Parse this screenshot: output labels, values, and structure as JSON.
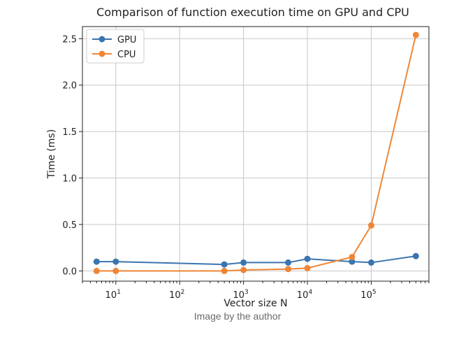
{
  "caption": "Image by the author",
  "chart_data": {
    "type": "line",
    "title": "Comparison of function execution time on GPU and CPU",
    "xlabel": "Vector size N",
    "ylabel": "Time (ms)",
    "xscale": "log",
    "xlim": [
      3,
      800000
    ],
    "ylim": [
      -0.11,
      2.63
    ],
    "x_ticks": [
      {
        "value": 10,
        "base": "10",
        "exp": "1"
      },
      {
        "value": 100,
        "base": "10",
        "exp": "2"
      },
      {
        "value": 1000,
        "base": "10",
        "exp": "3"
      },
      {
        "value": 10000,
        "base": "10",
        "exp": "4"
      },
      {
        "value": 100000,
        "base": "10",
        "exp": "5"
      }
    ],
    "y_ticks": [
      {
        "value": 0.0,
        "label": "0.0"
      },
      {
        "value": 0.5,
        "label": "0.5"
      },
      {
        "value": 1.0,
        "label": "1.0"
      },
      {
        "value": 1.5,
        "label": "1.5"
      },
      {
        "value": 2.0,
        "label": "2.0"
      },
      {
        "value": 2.5,
        "label": "2.5"
      }
    ],
    "grid": true,
    "legend_position": "top-left",
    "x": [
      5,
      10,
      500,
      1000,
      5000,
      10000,
      50000,
      100000,
      500000
    ],
    "series": [
      {
        "name": "GPU",
        "color": "#3b75af",
        "values": [
          0.1,
          0.1,
          0.07,
          0.09,
          0.09,
          0.13,
          0.1,
          0.09,
          0.16
        ]
      },
      {
        "name": "CPU",
        "color": "#ef8636",
        "values": [
          0.0,
          0.0,
          0.0,
          0.01,
          0.02,
          0.03,
          0.15,
          0.49,
          2.54
        ]
      }
    ]
  }
}
